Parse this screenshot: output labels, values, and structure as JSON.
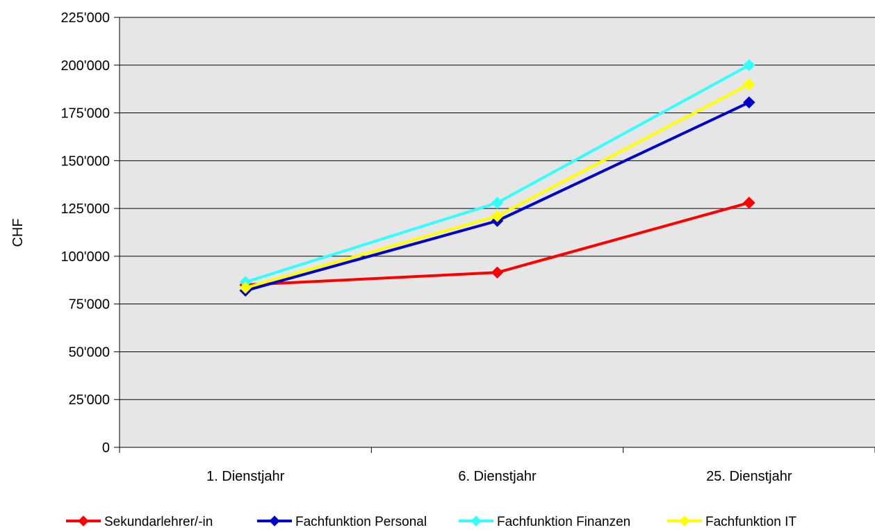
{
  "chart_data": {
    "type": "line",
    "title": "",
    "xlabel": "",
    "ylabel": "CHF",
    "categories": [
      "1. Dienstjahr",
      "6. Dienstjahr",
      "25. Dienstjahr"
    ],
    "ylim": [
      0,
      225000
    ],
    "yticks": [
      0,
      25000,
      50000,
      75000,
      100000,
      125000,
      150000,
      175000,
      200000,
      225000
    ],
    "ytick_labels": [
      "0",
      "25'000",
      "50'000",
      "75'000",
      "100'000",
      "125'000",
      "150'000",
      "175'000",
      "200'000",
      "225'000"
    ],
    "grid": true,
    "legend_position": "bottom",
    "series": [
      {
        "name": "Sekundarlehrer/-in",
        "color": "#ff0000",
        "values": [
          85000,
          91500,
          128000
        ]
      },
      {
        "name": "Fachfunktion Personal",
        "color": "#0000cc",
        "values": [
          82000,
          118500,
          180500
        ]
      },
      {
        "name": "Fachfunktion Finanzen",
        "color": "#33ffff",
        "values": [
          86500,
          128000,
          200000
        ]
      },
      {
        "name": "Fachfunktion IT",
        "color": "#ffff00",
        "values": [
          83500,
          121000,
          190000
        ]
      }
    ]
  },
  "colors": {
    "plot_background": "#e6e6e6",
    "gridline": "#000000"
  }
}
